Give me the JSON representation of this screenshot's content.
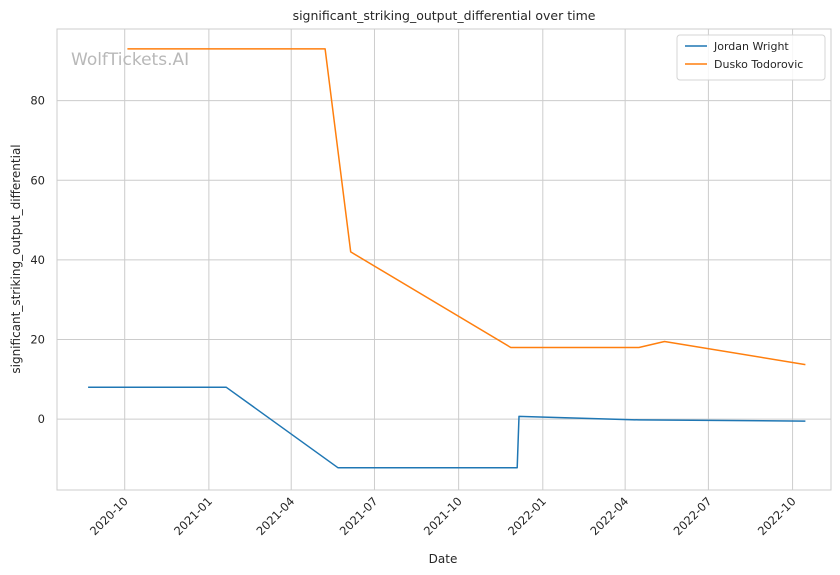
{
  "watermark": "WolfTickets.AI",
  "chart_data": {
    "type": "line",
    "title": "significant_striking_output_differential over time",
    "xlabel": "Date",
    "ylabel": "significant_striking_output_differential",
    "x_axis": "date",
    "xlim": [
      "2020-07-19",
      "2022-11-12"
    ],
    "ylim": [
      -17.8,
      98.0
    ],
    "grid": true,
    "legend_position": "top-right",
    "x_ticks": [
      "2020-10",
      "2021-01",
      "2021-04",
      "2021-07",
      "2021-10",
      "2022-01",
      "2022-04",
      "2022-07",
      "2022-10"
    ],
    "y_ticks": [
      0,
      20,
      40,
      60,
      80
    ],
    "series": [
      {
        "name": "Jordan Wright",
        "color": "#1f77b4",
        "points": [
          {
            "x": "2020-08-22",
            "y": 8.0
          },
          {
            "x": "2021-01-20",
            "y": 8.0
          },
          {
            "x": "2021-05-22",
            "y": -12.2
          },
          {
            "x": "2021-12-04",
            "y": -12.2
          },
          {
            "x": "2021-12-06",
            "y": 0.7
          },
          {
            "x": "2022-04-16",
            "y": -0.2
          },
          {
            "x": "2022-10-15",
            "y": -0.5
          }
        ]
      },
      {
        "name": "Dusko Todorovic",
        "color": "#ff7f0e",
        "points": [
          {
            "x": "2020-10-04",
            "y": 93.0
          },
          {
            "x": "2021-05-08",
            "y": 93.0
          },
          {
            "x": "2021-06-05",
            "y": 42.0
          },
          {
            "x": "2021-11-27",
            "y": 18.0
          },
          {
            "x": "2022-04-16",
            "y": 18.0
          },
          {
            "x": "2022-05-14",
            "y": 19.5
          },
          {
            "x": "2022-10-15",
            "y": 13.7
          }
        ]
      }
    ]
  }
}
